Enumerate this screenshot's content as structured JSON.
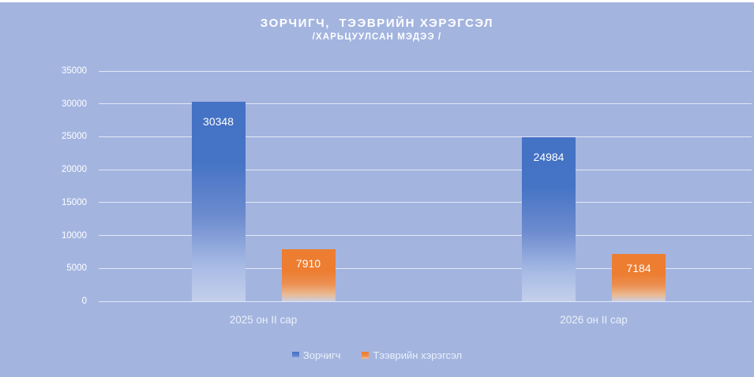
{
  "chart_data": {
    "type": "bar",
    "title": "ЗОРЧИГЧ,  ТЭЭВРИЙН ХЭРЭГСЭЛ",
    "subtitle": "/ХАРЬЦУУЛСАН МЭДЭЭ /",
    "categories": [
      "2025 он II сар",
      "2026 он II сар"
    ],
    "series": [
      {
        "name": "Зорчигч",
        "values": [
          30348,
          24984
        ],
        "color": "#4472C4",
        "fade_color": "#C4CFEB"
      },
      {
        "name": "Тээврийн хэрэгсэл",
        "values": [
          7910,
          7184
        ],
        "color": "#ED7D31",
        "fade_color": "#CDCEDF"
      }
    ],
    "ylim": [
      0,
      35000
    ],
    "ytick_step": 5000,
    "ytick_labels": [
      "0",
      "5000",
      "10000",
      "15000",
      "20000",
      "25000",
      "30000",
      "35000"
    ],
    "grid": "horizontal",
    "gridline_color": "#FFFFFF",
    "legend_position": "bottom",
    "background_color": "#A3B4DF",
    "text_color": "#FFFFFF",
    "xlabel": "",
    "ylabel": ""
  }
}
